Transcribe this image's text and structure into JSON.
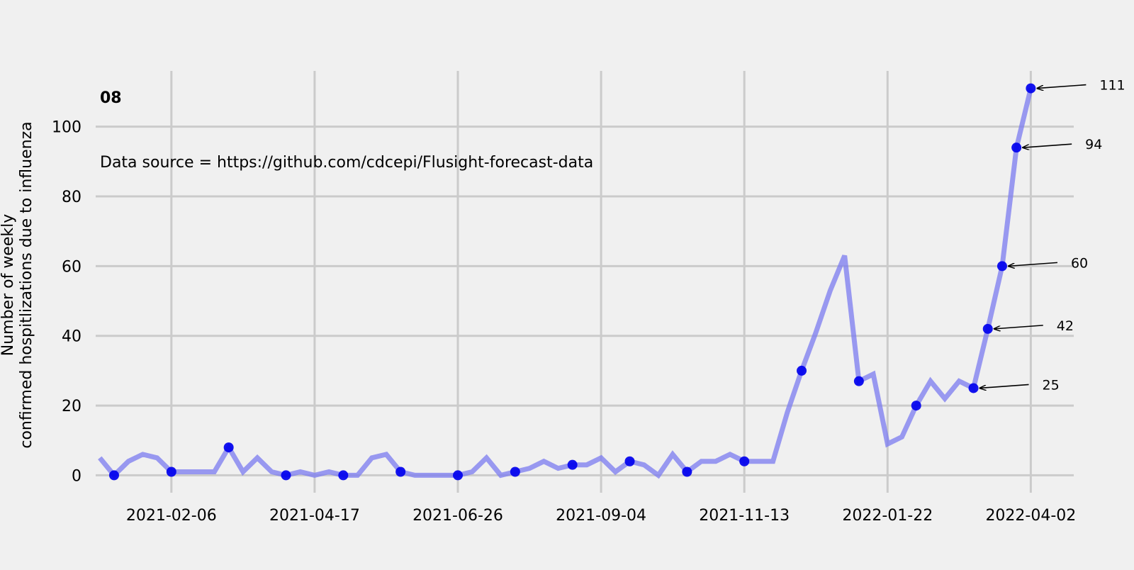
{
  "chart_data": {
    "type": "line",
    "title": "08",
    "annotation_text": "Data source = https://github.com/cdcepi/Flusight-forecast-data",
    "ylabel_line1": "Number of weekly",
    "ylabel_line2": "confirmed hospitlizations due to influenza",
    "xlabel": "",
    "x_ticks": [
      "2021-02-06",
      "2021-04-17",
      "2021-06-26",
      "2021-09-04",
      "2021-11-13",
      "2022-01-22",
      "2022-04-02"
    ],
    "y_ticks": [
      0,
      20,
      40,
      60,
      80,
      100
    ],
    "xlim": [
      "2020-12-31",
      "2022-04-23"
    ],
    "ylim": [
      -5,
      116
    ],
    "grid": true,
    "line_color": "#7b7bf0",
    "marker_color": "#0000ee",
    "series": [
      {
        "x": [
          "2021-01-02",
          "2021-01-09",
          "2021-01-16",
          "2021-01-23",
          "2021-01-30",
          "2021-02-06",
          "2021-02-13",
          "2021-02-20",
          "2021-02-27",
          "2021-03-06",
          "2021-03-13",
          "2021-03-20",
          "2021-03-27",
          "2021-04-03",
          "2021-04-10",
          "2021-04-17",
          "2021-04-24",
          "2021-05-01",
          "2021-05-08",
          "2021-05-15",
          "2021-05-22",
          "2021-05-29",
          "2021-06-05",
          "2021-06-12",
          "2021-06-19",
          "2021-06-26",
          "2021-07-03",
          "2021-07-10",
          "2021-07-17",
          "2021-07-24",
          "2021-07-31",
          "2021-08-07",
          "2021-08-14",
          "2021-08-21",
          "2021-08-28",
          "2021-09-04",
          "2021-09-11",
          "2021-09-18",
          "2021-09-25",
          "2021-10-02",
          "2021-10-09",
          "2021-10-16",
          "2021-10-23",
          "2021-10-30",
          "2021-11-06",
          "2021-11-13",
          "2021-11-20",
          "2021-11-27",
          "2021-12-04",
          "2021-12-11",
          "2021-12-18",
          "2021-12-25",
          "2022-01-01",
          "2022-01-08",
          "2022-01-15",
          "2022-01-22",
          "2022-01-29",
          "2022-02-05",
          "2022-02-12",
          "2022-02-19",
          "2022-02-26",
          "2022-03-05",
          "2022-03-12",
          "2022-03-19",
          "2022-03-26",
          "2022-04-02"
        ],
        "values": [
          5,
          0,
          4,
          6,
          5,
          1,
          1,
          1,
          1,
          8,
          1,
          5,
          1,
          0,
          1,
          0,
          1,
          0,
          0,
          5,
          6,
          1,
          0,
          0,
          0,
          0,
          1,
          5,
          0,
          1,
          2,
          4,
          2,
          3,
          3,
          5,
          1,
          4,
          3,
          0,
          6,
          1,
          4,
          4,
          6,
          4,
          4,
          4,
          18,
          30,
          41,
          53,
          63,
          27,
          29,
          9,
          11,
          20,
          27,
          22,
          27,
          25,
          42,
          60,
          94,
          111
        ]
      }
    ],
    "markers": [
      {
        "x": "2021-01-09",
        "y": 0
      },
      {
        "x": "2021-02-06",
        "y": 1
      },
      {
        "x": "2021-03-06",
        "y": 8
      },
      {
        "x": "2021-04-03",
        "y": 0
      },
      {
        "x": "2021-05-01",
        "y": 0
      },
      {
        "x": "2021-05-29",
        "y": 1
      },
      {
        "x": "2021-06-26",
        "y": 0
      },
      {
        "x": "2021-07-24",
        "y": 1
      },
      {
        "x": "2021-08-21",
        "y": 3
      },
      {
        "x": "2021-09-18",
        "y": 4
      },
      {
        "x": "2021-10-16",
        "y": 1
      },
      {
        "x": "2021-11-13",
        "y": 4
      },
      {
        "x": "2021-12-11",
        "y": 30
      },
      {
        "x": "2022-01-08",
        "y": 27
      },
      {
        "x": "2022-02-05",
        "y": 20
      },
      {
        "x": "2022-03-05",
        "y": 25
      },
      {
        "x": "2022-03-12",
        "y": 42
      },
      {
        "x": "2022-03-19",
        "y": 60
      },
      {
        "x": "2022-03-26",
        "y": 94
      },
      {
        "x": "2022-04-02",
        "y": 111
      }
    ],
    "callouts": [
      {
        "x": "2022-03-05",
        "y": 25,
        "label": "25"
      },
      {
        "x": "2022-03-12",
        "y": 42,
        "label": "42"
      },
      {
        "x": "2022-03-19",
        "y": 60,
        "label": "60"
      },
      {
        "x": "2022-03-26",
        "y": 94,
        "label": "94"
      },
      {
        "x": "2022-04-02",
        "y": 111,
        "label": "111"
      }
    ]
  }
}
